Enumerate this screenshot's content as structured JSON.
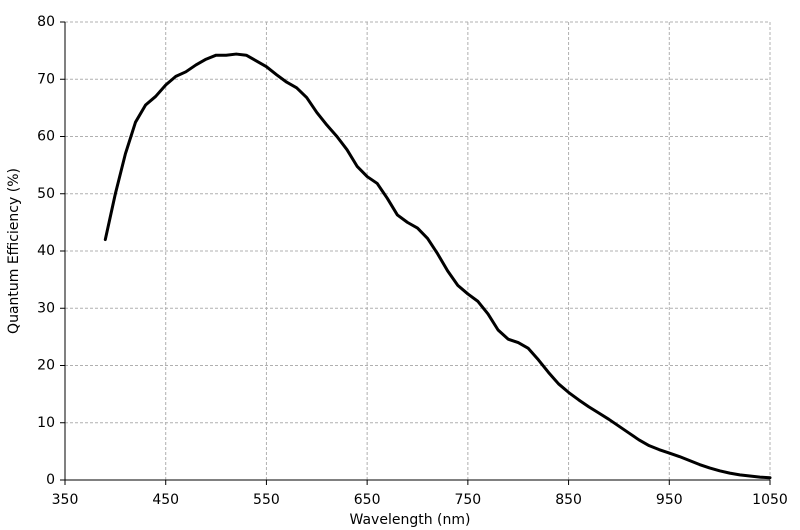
{
  "chart_data": {
    "type": "line",
    "x_label": "Wavelength (nm)",
    "y_label": "Quantum Efficiency (%)",
    "x": [
      390,
      400,
      410,
      420,
      430,
      440,
      450,
      460,
      470,
      480,
      490,
      500,
      510,
      520,
      530,
      540,
      550,
      560,
      570,
      580,
      590,
      600,
      610,
      620,
      630,
      640,
      650,
      660,
      670,
      680,
      690,
      700,
      710,
      720,
      730,
      740,
      750,
      760,
      770,
      780,
      790,
      800,
      810,
      820,
      830,
      840,
      850,
      860,
      870,
      880,
      890,
      900,
      910,
      920,
      930,
      940,
      950,
      960,
      970,
      980,
      990,
      1000,
      1010,
      1020,
      1030,
      1040,
      1050
    ],
    "series": [
      {
        "color": "#000000",
        "values": [
          42,
          50,
          57,
          62.5,
          65.5,
          67,
          69,
          70.5,
          71.3,
          72.5,
          73.5,
          74.2,
          74.2,
          74.4,
          74.2,
          73.2,
          72.2,
          70.8,
          69.5,
          68.5,
          66.8,
          64.2,
          62,
          60,
          57.7,
          54.8,
          53,
          51.8,
          49.2,
          46.3,
          45,
          44,
          42.2,
          39.5,
          36.5,
          34,
          32.5,
          31.2,
          29,
          26.2,
          24.6,
          24,
          23,
          21,
          18.8,
          16.8,
          15.3,
          14,
          12.8,
          11.7,
          10.6,
          9.4,
          8.2,
          7,
          6,
          5.3,
          4.7,
          4.1,
          3.4,
          2.7,
          2.1,
          1.6,
          1.2,
          0.9,
          0.7,
          0.5,
          0.4
        ]
      }
    ],
    "xlim": [
      350,
      1050
    ],
    "xticks": [
      350,
      450,
      550,
      650,
      750,
      850,
      950,
      1050
    ],
    "ylim": [
      0,
      80
    ],
    "yticks": [
      0,
      10,
      20,
      30,
      40,
      50,
      60,
      70,
      80
    ],
    "grid": true
  }
}
